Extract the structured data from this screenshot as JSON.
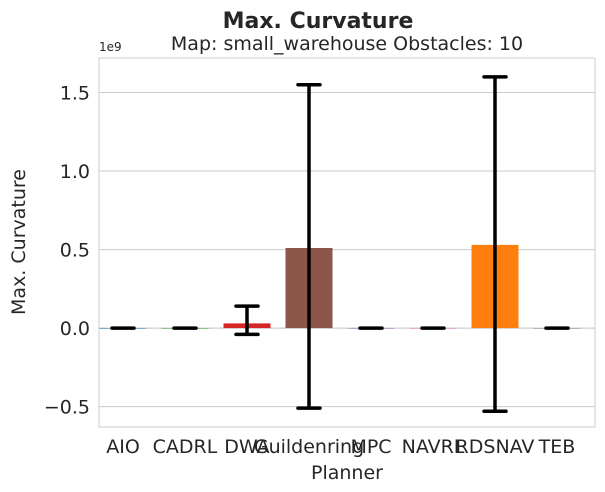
{
  "chart_data": {
    "type": "bar",
    "title": "Max. Curvature",
    "subtitle": "Map: small_warehouse Obstacles: 10",
    "xlabel": "Planner",
    "ylabel": "Max. Curvature",
    "y_offset_label": "1e9",
    "y_scale": 1000000000,
    "ylim": [
      -0.63,
      1.72
    ],
    "yticks": [
      -0.5,
      0.0,
      0.5,
      1.0,
      1.5
    ],
    "ytick_labels": [
      "−0.5",
      "0.0",
      "0.5",
      "1.0",
      "1.5"
    ],
    "grid": true,
    "categories": [
      "AIO",
      "CADRL",
      "DWA",
      "Guildenring",
      "MPC",
      "NAVRL",
      "RDSNAV",
      "TEB"
    ],
    "values": [
      0.0,
      0.0,
      0.03,
      0.51,
      0.0,
      0.0,
      0.53,
      0.0
    ],
    "error_low": [
      0.0,
      0.0,
      -0.04,
      -0.51,
      0.0,
      0.0,
      -0.53,
      0.0
    ],
    "error_high": [
      0.0,
      0.0,
      0.14,
      1.55,
      0.0,
      0.0,
      1.6,
      0.0
    ],
    "colors": [
      "#1f77b4",
      "#2ca02c",
      "#d62728",
      "#8c564b",
      "#9467bd",
      "#e377c2",
      "#ff7f0e",
      "#7f7f7f"
    ]
  }
}
